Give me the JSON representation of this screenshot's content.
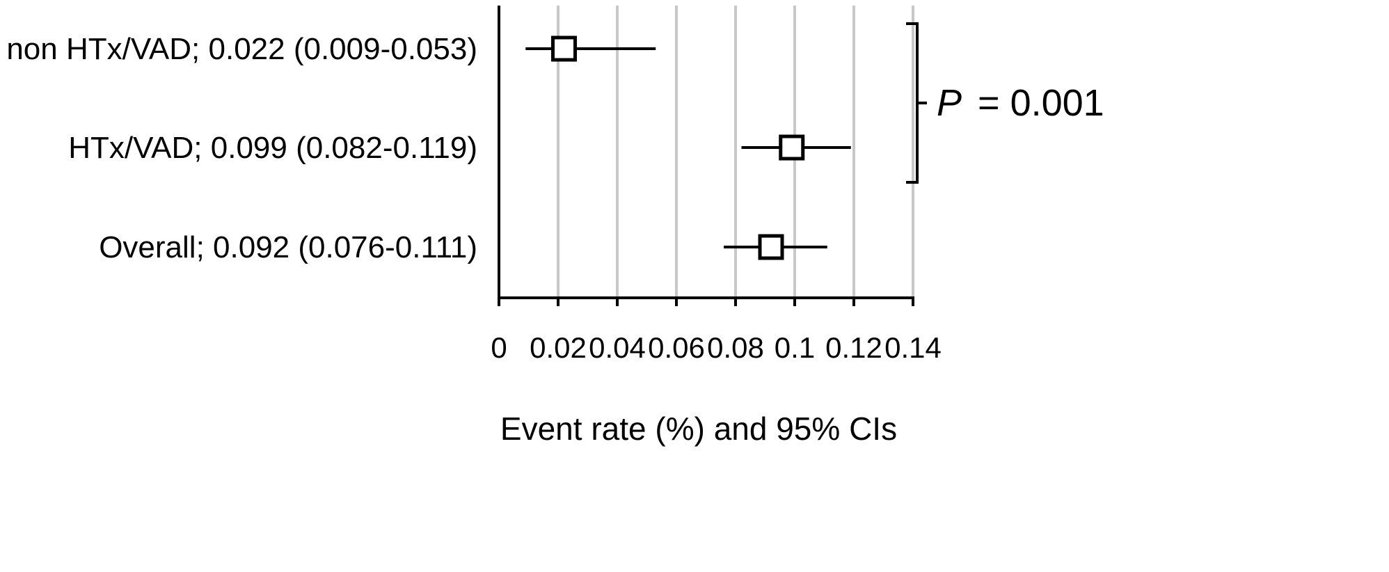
{
  "chart_data": {
    "type": "forest",
    "xlabel": "Event rate (%) and 95% CIs",
    "xlim": [
      0,
      0.14
    ],
    "xticks": [
      0,
      0.02,
      0.04,
      0.06,
      0.08,
      0.1,
      0.12,
      0.14
    ],
    "xtick_labels": [
      "0",
      "0.02",
      "0.04",
      "0.06",
      "0.08",
      "0.1",
      "0.12",
      "0.14"
    ],
    "grid": true,
    "rows": [
      {
        "label": "non HTx/VAD; 0.022 (0.009-0.053)",
        "estimate": 0.022,
        "ci_low": 0.009,
        "ci_high": 0.053
      },
      {
        "label": "HTx/VAD; 0.099 (0.082-0.119)",
        "estimate": 0.099,
        "ci_low": 0.082,
        "ci_high": 0.119
      },
      {
        "label": "Overall; 0.092 (0.076-0.111)",
        "estimate": 0.092,
        "ci_low": 0.076,
        "ci_high": 0.111
      }
    ],
    "comparison": {
      "p_symbol": "P",
      "p_value": "= 0.001",
      "rows": [
        0,
        1
      ]
    }
  }
}
